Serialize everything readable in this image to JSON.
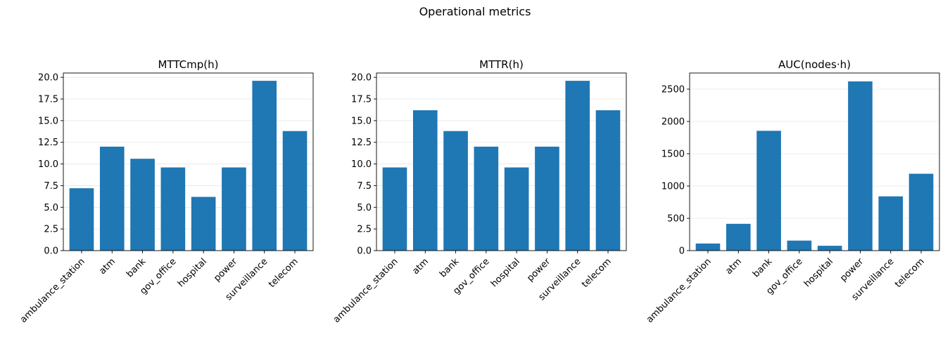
{
  "figure": {
    "suptitle": "Operational metrics",
    "bar_color": "#1f77b4",
    "grid_color": "#e6e6e6"
  },
  "chart_data": [
    {
      "type": "bar",
      "title": "MTTCmp(h)",
      "categories": [
        "ambulance_station",
        "atm",
        "bank",
        "gov_office",
        "hospital",
        "power",
        "surveillance",
        "telecom"
      ],
      "values": [
        7.2,
        12.0,
        10.6,
        9.6,
        6.2,
        9.6,
        19.6,
        13.8
      ],
      "ylim": [
        0,
        20.5
      ],
      "yticks": [
        0.0,
        2.5,
        5.0,
        7.5,
        10.0,
        12.5,
        15.0,
        17.5,
        20.0
      ],
      "ytick_labels": [
        "0.0",
        "2.5",
        "5.0",
        "7.5",
        "10.0",
        "12.5",
        "15.0",
        "17.5",
        "20.0"
      ],
      "grid": "y"
    },
    {
      "type": "bar",
      "title": "MTTR(h)",
      "categories": [
        "ambulance_station",
        "atm",
        "bank",
        "gov_office",
        "hospital",
        "power",
        "surveillance",
        "telecom"
      ],
      "values": [
        9.6,
        16.2,
        13.8,
        12.0,
        9.6,
        12.0,
        19.6,
        16.2
      ],
      "ylim": [
        0,
        20.5
      ],
      "yticks": [
        0.0,
        2.5,
        5.0,
        7.5,
        10.0,
        12.5,
        15.0,
        17.5,
        20.0
      ],
      "ytick_labels": [
        "0.0",
        "2.5",
        "5.0",
        "7.5",
        "10.0",
        "12.5",
        "15.0",
        "17.5",
        "20.0"
      ],
      "grid": "y"
    },
    {
      "type": "bar",
      "title": "AUC(nodes·h)",
      "categories": [
        "ambulance_station",
        "atm",
        "bank",
        "gov_office",
        "hospital",
        "power",
        "surveillance",
        "telecom"
      ],
      "values": [
        110,
        415,
        1855,
        155,
        75,
        2620,
        840,
        1190
      ],
      "ylim": [
        0,
        2750
      ],
      "yticks": [
        0,
        500,
        1000,
        1500,
        2000,
        2500
      ],
      "ytick_labels": [
        "0",
        "500",
        "1000",
        "1500",
        "2000",
        "2500"
      ],
      "grid": "y"
    }
  ]
}
